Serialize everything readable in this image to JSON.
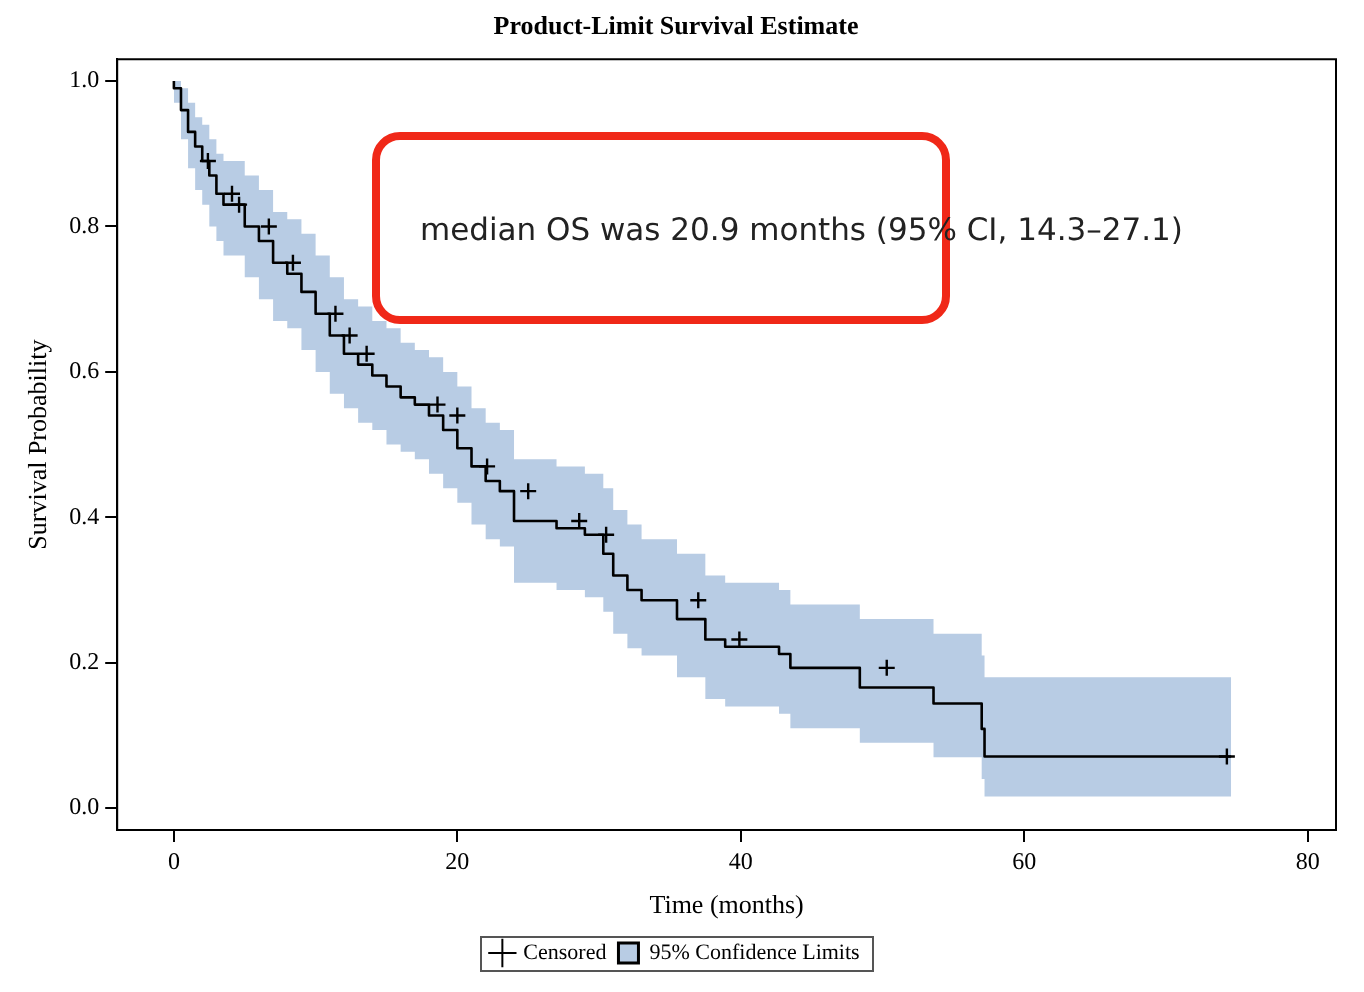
{
  "chart_data": {
    "type": "step",
    "title": "Product-Limit Survival Estimate",
    "xlabel": "Time (months)",
    "ylabel": "Survival Probability",
    "annotations": [
      "median OS was 20.9 months (95% CI, 14.3–27.1)"
    ],
    "xlim": [
      -4,
      82
    ],
    "xticks": [
      0,
      20,
      40,
      60,
      80
    ],
    "ylim": [
      -0.03,
      1.03
    ],
    "yticks": [
      {
        "value": 0,
        "label": "0.0"
      },
      {
        "value": 0.2,
        "label": "0.2"
      },
      {
        "value": 0.4,
        "label": "0.4"
      },
      {
        "value": 0.6,
        "label": "0.6"
      },
      {
        "value": 0.8,
        "label": "0.8"
      },
      {
        "value": 1,
        "label": "1.0"
      }
    ],
    "grid": false,
    "legend": "bottom",
    "series": [
      {
        "name": "Censored",
        "type": "scatter",
        "marker": "cross",
        "color": "#000000",
        "x": [
          2.4,
          4.1,
          4.6,
          6.7,
          8.4,
          11.4,
          12.4,
          13.6,
          18.6,
          20,
          22.1,
          25,
          28.6,
          30.5,
          37,
          39.9,
          50.3,
          74.3
        ],
        "values": [
          0.89,
          0.845,
          0.83,
          0.8,
          0.75,
          0.68,
          0.65,
          0.625,
          0.555,
          0.54,
          0.47,
          0.436,
          0.395,
          0.376,
          0.286,
          0.232,
          0.193,
          0.071
        ]
      },
      {
        "name": "95% Confidence Limits",
        "color": "#000000",
        "x": [
          0,
          0.5,
          1,
          1.5,
          2,
          2.5,
          3,
          3.5,
          5,
          6,
          7,
          8,
          9,
          10,
          11,
          12,
          13,
          14,
          15,
          16,
          17,
          18,
          19,
          20,
          21,
          22,
          23,
          24,
          27,
          29,
          30.3,
          31,
          32,
          33,
          35.5,
          37.5,
          38.9,
          42.7,
          43.5,
          48.4,
          53.6,
          57,
          57.2,
          59.1,
          74.6
        ],
        "values": [
          1.0,
          0.99,
          0.96,
          0.93,
          0.91,
          0.89,
          0.87,
          0.845,
          0.83,
          0.8,
          0.78,
          0.75,
          0.735,
          0.71,
          0.68,
          0.65,
          0.625,
          0.61,
          0.595,
          0.58,
          0.565,
          0.555,
          0.54,
          0.52,
          0.495,
          0.47,
          0.45,
          0.436,
          0.395,
          0.385,
          0.376,
          0.35,
          0.32,
          0.3,
          0.286,
          0.26,
          0.232,
          0.222,
          0.212,
          0.193,
          0.166,
          0.144,
          0.109,
          0.071,
          0.071
        ],
        "lower": [
          1.0,
          0.97,
          0.92,
          0.88,
          0.85,
          0.83,
          0.8,
          0.78,
          0.76,
          0.73,
          0.7,
          0.67,
          0.66,
          0.63,
          0.6,
          0.57,
          0.55,
          0.53,
          0.52,
          0.5,
          0.49,
          0.48,
          0.46,
          0.44,
          0.42,
          0.39,
          0.37,
          0.36,
          0.31,
          0.3,
          0.29,
          0.27,
          0.24,
          0.22,
          0.21,
          0.18,
          0.15,
          0.14,
          0.13,
          0.11,
          0.09,
          0.07,
          0.04,
          0.016,
          0.016
        ],
        "upper": [
          1.0,
          1.0,
          0.99,
          0.97,
          0.95,
          0.94,
          0.92,
          0.9,
          0.89,
          0.87,
          0.85,
          0.82,
          0.81,
          0.79,
          0.76,
          0.73,
          0.7,
          0.69,
          0.67,
          0.66,
          0.64,
          0.63,
          0.62,
          0.6,
          0.58,
          0.55,
          0.53,
          0.52,
          0.48,
          0.47,
          0.46,
          0.44,
          0.41,
          0.39,
          0.37,
          0.35,
          0.32,
          0.31,
          0.3,
          0.28,
          0.26,
          0.24,
          0.21,
          0.18,
          0.18
        ]
      }
    ]
  }
}
